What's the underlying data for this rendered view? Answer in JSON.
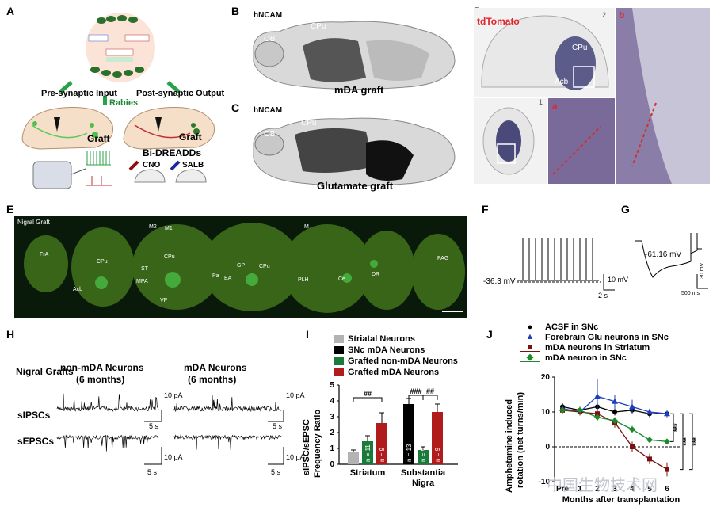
{
  "panels": {
    "A": {
      "label": "A",
      "pre": "Pre-synaptic Input",
      "post": "Post-synaptic Output",
      "rabies": "Rabies",
      "graft": "Graft",
      "bidreadds": "Bi-DREADDs",
      "cno": "CNO",
      "salb": "SALB"
    },
    "B": {
      "label": "B",
      "marker": "hNCAM",
      "ob": "OB",
      "cpu": "CPu",
      "caption": "mDA graft"
    },
    "C": {
      "label": "C",
      "marker": "hNCAM",
      "ob": "OB",
      "cpu": "CPu",
      "caption": "Glutamate graft"
    },
    "D": {
      "label": "D",
      "marker": "tdTomato",
      "cpu": "CPu",
      "acb": "Acb",
      "sub_a": "a",
      "sub_b": "b",
      "n1": "1",
      "n2": "2"
    },
    "E": {
      "label": "E",
      "title": "Nigral Graft",
      "regions": [
        "FrA",
        "CPu",
        "Acb",
        "M2",
        "M1",
        "ST",
        "MPA",
        "VP",
        "CPu",
        "Pa",
        "EA",
        "GP",
        "CPu",
        "M",
        "PLH",
        "Ce",
        "DR",
        "PAG"
      ]
    },
    "F": {
      "label": "F",
      "voltage": "-36.3 mV",
      "scale_v": "10 mV",
      "scale_t": "2 s"
    },
    "G": {
      "label": "G",
      "voltage": "-61.16 mV",
      "scale_v": "30 mV",
      "scale_t": "500 ms"
    },
    "H": {
      "label": "H",
      "row_title": "Nigral Grafts",
      "col1": "non-mDA Neurons",
      "col1b": "(6 months)",
      "col2": "mDA Neurons",
      "col2b": "(6 months)",
      "row1": "sIPSCs",
      "row2": "sEPSCs",
      "scale_pa": "10 pA",
      "scale_s": "5 s"
    },
    "I": {
      "label": "I",
      "legend": [
        "Striatal Neurons",
        "SNc mDA Neurons",
        "Grafted non-mDA Neurons",
        "Grafted mDA Neurons"
      ],
      "ylabel_1": "sIPSC/sEPSC",
      "ylabel_2": "Frequency Ratio",
      "sig1": "##",
      "sig2": "###",
      "sig3": "##",
      "n_labels": [
        "n = 11",
        "n = 9",
        "n = 13",
        "n = 9",
        "n = 9"
      ]
    },
    "J": {
      "label": "J",
      "legend": [
        "ACSF in SNc",
        "Forebrain Glu neurons in SNc",
        "mDA neurons in Striatum",
        "mDA neuron in SNc"
      ],
      "ylabel_1": "Amphetamine induced",
      "ylabel_2": "rotation (net turns/min)",
      "xlabel": "Months after transplantation",
      "sig": "***",
      "watermark": "中国生物技术网"
    }
  },
  "chart_data": [
    {
      "type": "bar",
      "title": "",
      "ylabel": "sIPSC/sEPSC Frequency Ratio",
      "xlabel": "",
      "ylim": [
        0,
        5
      ],
      "yticks": [
        0,
        1,
        2,
        3,
        4,
        5
      ],
      "groups": [
        "Striatum",
        "Substantia Nigra"
      ],
      "colors": {
        "Striatal Neurons": "#b3b3b3",
        "SNc mDA Neurons": "#000000",
        "Grafted non-mDA Neurons": "#1a7a3a",
        "Grafted mDA Neurons": "#b01c1c"
      },
      "bars": [
        {
          "group": "Striatum",
          "series": "Striatal Neurons",
          "value": 0.75,
          "err": 0.15,
          "n": ""
        },
        {
          "group": "Striatum",
          "series": "Grafted non-mDA Neurons",
          "value": 1.45,
          "err": 0.35,
          "n": "n = 11"
        },
        {
          "group": "Striatum",
          "series": "Grafted mDA Neurons",
          "value": 2.6,
          "err": 0.65,
          "n": "n = 9"
        },
        {
          "group": "Substantia Nigra",
          "series": "SNc mDA Neurons",
          "value": 3.8,
          "err": 0.35,
          "n": "n = 13"
        },
        {
          "group": "Substantia Nigra",
          "series": "Grafted non-mDA Neurons",
          "value": 0.9,
          "err": 0.2,
          "n": "n = 9"
        },
        {
          "group": "Substantia Nigra",
          "series": "Grafted mDA Neurons",
          "value": 3.3,
          "err": 0.5,
          "n": "n = 9"
        }
      ]
    },
    {
      "type": "line",
      "title": "",
      "xlabel": "Months after transplantation",
      "ylabel": "Amphetamine induced rotation (net turns/min)",
      "categories": [
        "Pre",
        "1",
        "2",
        "3",
        "4",
        "5",
        "6"
      ],
      "ylim": [
        -10,
        20
      ],
      "yticks": [
        -10,
        0,
        10,
        20
      ],
      "series": [
        {
          "name": "ACSF in SNc",
          "color": "#000000",
          "marker": "circle",
          "values": [
            11.5,
            10.5,
            11.5,
            10.0,
            10.5,
            9.5,
            9.5
          ],
          "err": [
            1,
            1,
            1,
            1,
            1,
            1,
            1
          ]
        },
        {
          "name": "Forebrain Glu neurons in SNc",
          "color": "#1f3fbf",
          "marker": "triangle",
          "values": [
            11.0,
            10.0,
            14.5,
            13.0,
            11.5,
            10.0,
            9.5
          ],
          "err": [
            1,
            1,
            5,
            2,
            2,
            1,
            1
          ]
        },
        {
          "name": "mDA neurons in Striatum",
          "color": "#7a1010",
          "marker": "square",
          "values": [
            10.5,
            10.0,
            9.5,
            7.0,
            0.0,
            -3.5,
            -6.5
          ],
          "err": [
            1,
            1,
            1,
            1.5,
            1.5,
            1.5,
            2
          ]
        },
        {
          "name": "mDA neuron in SNc",
          "color": "#1a8a2a",
          "marker": "diamond",
          "values": [
            10.5,
            10.5,
            8.5,
            7.5,
            5.0,
            2.0,
            1.5
          ],
          "err": [
            1,
            1,
            1,
            1,
            1,
            0.5,
            0.5
          ]
        }
      ]
    }
  ]
}
